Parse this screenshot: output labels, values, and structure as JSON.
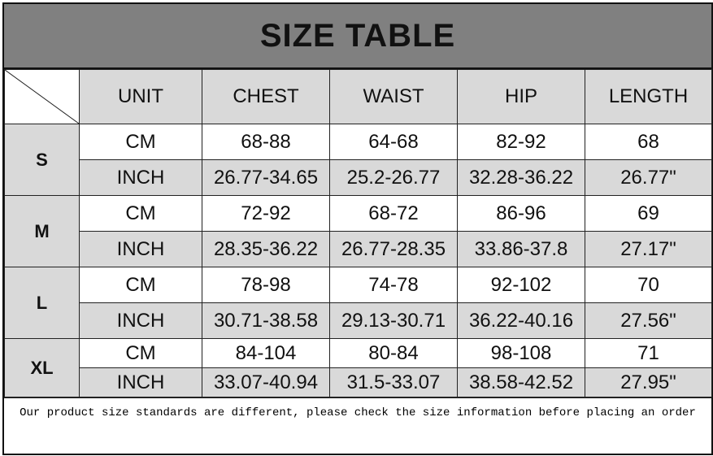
{
  "title": "SIZE TABLE",
  "columns": [
    "UNIT",
    "CHEST",
    "WAIST",
    "HIP",
    "LENGTH"
  ],
  "sizes": [
    {
      "size": "S",
      "rows": [
        [
          "CM",
          "68-88",
          "64-68",
          "82-92",
          "68"
        ],
        [
          "INCH",
          "26.77-34.65",
          "25.2-26.77",
          "32.28-36.22",
          "26.77\""
        ]
      ]
    },
    {
      "size": "M",
      "rows": [
        [
          "CM",
          "72-92",
          "68-72",
          "86-96",
          "69"
        ],
        [
          "INCH",
          "28.35-36.22",
          "26.77-28.35",
          "33.86-37.8",
          "27.17\""
        ]
      ]
    },
    {
      "size": "L",
      "rows": [
        [
          "CM",
          "78-98",
          "74-78",
          "92-102",
          "70"
        ],
        [
          "INCH",
          "30.71-38.58",
          "29.13-30.71",
          "36.22-40.16",
          "27.56\""
        ]
      ]
    },
    {
      "size": "XL",
      "rows": [
        [
          "CM",
          "84-104",
          "80-84",
          "98-108",
          "71"
        ],
        [
          "INCH",
          "33.07-40.94",
          "31.5-33.07",
          "38.58-42.52",
          "27.95\""
        ]
      ]
    }
  ],
  "footer": "Our product size standards are different, please check the size information before placing an order"
}
